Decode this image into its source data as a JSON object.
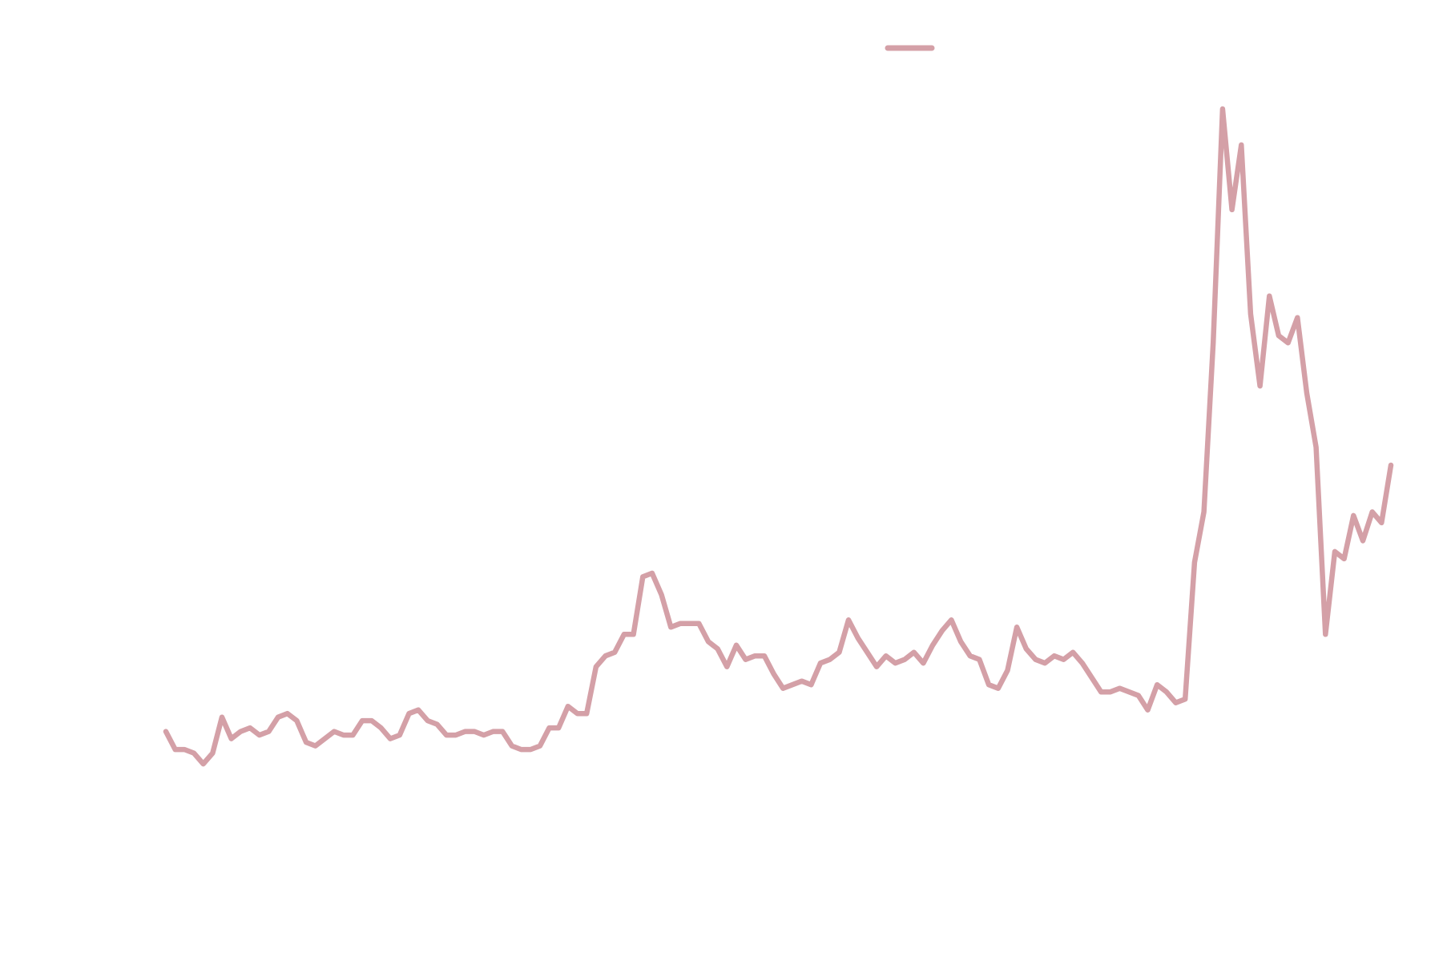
{
  "chart_data": {
    "type": "line",
    "title": "",
    "xlabel": "",
    "ylabel": "",
    "grid": false,
    "legend": "top-center",
    "xlim": [
      0,
      131
    ],
    "ylim": [
      0,
      200
    ],
    "series": [
      {
        "color": "#d4a0a7",
        "x": [
          0,
          1,
          2,
          3,
          4,
          5,
          6,
          7,
          8,
          9,
          10,
          11,
          12,
          13,
          14,
          15,
          16,
          17,
          18,
          19,
          20,
          21,
          22,
          23,
          24,
          25,
          26,
          27,
          28,
          29,
          30,
          31,
          32,
          33,
          34,
          35,
          36,
          37,
          38,
          39,
          40,
          41,
          42,
          43,
          44,
          45,
          46,
          47,
          48,
          49,
          50,
          51,
          52,
          53,
          54,
          55,
          56,
          57,
          58,
          59,
          60,
          61,
          62,
          63,
          64,
          65,
          66,
          67,
          68,
          69,
          70,
          71,
          72,
          73,
          74,
          75,
          76,
          77,
          78,
          79,
          80,
          81,
          82,
          83,
          84,
          85,
          86,
          87,
          88,
          89,
          90,
          91,
          92,
          93,
          94,
          95,
          96,
          97,
          98,
          99,
          100,
          101,
          102,
          103,
          104,
          105,
          106,
          107,
          108,
          109,
          110,
          111,
          112,
          113,
          114,
          115,
          116,
          117,
          118,
          119,
          120,
          121,
          122,
          123,
          124,
          125,
          126,
          127,
          128,
          129,
          130,
          131
        ],
        "values": [
          27,
          22,
          22,
          21,
          18,
          21,
          31,
          25,
          27,
          28,
          26,
          27,
          31,
          32,
          30,
          24,
          23,
          25,
          27,
          26,
          26,
          30,
          30,
          28,
          25,
          26,
          32,
          33,
          30,
          29,
          26,
          26,
          27,
          27,
          26,
          27,
          27,
          23,
          22,
          22,
          23,
          28,
          28,
          34,
          32,
          32,
          45,
          48,
          49,
          54,
          54,
          70,
          71,
          65,
          56,
          57,
          57,
          57,
          52,
          50,
          45,
          51,
          47,
          48,
          48,
          43,
          39,
          40,
          41,
          40,
          46,
          47,
          49,
          58,
          53,
          49,
          45,
          48,
          46,
          47,
          49,
          46,
          51,
          55,
          58,
          52,
          48,
          47,
          40,
          39,
          44,
          56,
          50,
          47,
          46,
          48,
          47,
          49,
          46,
          42,
          38,
          38,
          39,
          38,
          37,
          33,
          40,
          38,
          35,
          36,
          74,
          88,
          135,
          200,
          172,
          190,
          143,
          123,
          148,
          137,
          135,
          142,
          121,
          106,
          54,
          77,
          75,
          87,
          80,
          88,
          85,
          101
        ]
      }
    ]
  }
}
